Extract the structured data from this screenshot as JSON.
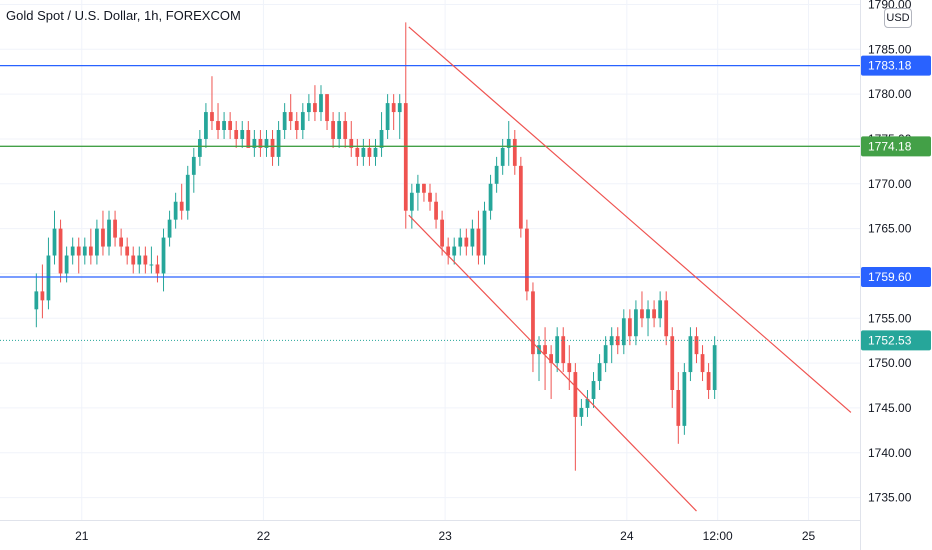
{
  "header": {
    "title": "Gold Spot / U.S. Dollar, 1h, FOREXCOM"
  },
  "currency_button": {
    "label": "USD"
  },
  "colors": {
    "up": "#26a69a",
    "down": "#ef5350",
    "grid": "#f0f3fa",
    "axis_text": "#131722",
    "blue_line": "#2962ff",
    "green_line": "#43a047",
    "channel": "#ef5350",
    "price_line": "#26a69a"
  },
  "chart_data": {
    "type": "candlestick",
    "title": "Gold Spot / U.S. Dollar, 1h, FOREXCOM",
    "ylim": [
      1732.5,
      1790.5
    ],
    "yticks": [
      1735,
      1740,
      1745,
      1750,
      1755,
      1760,
      1765,
      1770,
      1775,
      1780,
      1785,
      1790
    ],
    "ytick_labels": [
      "1735.00",
      "1740.00",
      "1745.00",
      "1750.00",
      "1755.00",
      "1760.00",
      "1765.00",
      "1770.00",
      "1775.00",
      "1780.00",
      "1785.00",
      "1790.00"
    ],
    "xticks": [
      {
        "label": "21",
        "x": 7.5
      },
      {
        "label": "22",
        "x": 37.5
      },
      {
        "label": "23",
        "x": 67.5
      },
      {
        "label": "24",
        "x": 97.5
      },
      {
        "label": "12:00",
        "x": 112.5
      },
      {
        "label": "25",
        "x": 127.5
      }
    ],
    "xlim": [
      -6,
      136
    ],
    "grid": true,
    "horizontal_levels": [
      {
        "value": 1783.18,
        "label": "1783.18",
        "color": "#2962ff"
      },
      {
        "value": 1774.18,
        "label": "1774.18",
        "color": "#43a047"
      },
      {
        "value": 1759.6,
        "label": "1759.60",
        "color": "#2962ff"
      }
    ],
    "last_price": {
      "value": 1752.53,
      "label": "1752.53"
    },
    "channel_lines": [
      {
        "x1": 61.5,
        "y1": 1787.5,
        "x2": 134.5,
        "y2": 1744.5
      },
      {
        "x1": 61.5,
        "y1": 1766.5,
        "x2": 109,
        "y2": 1733.5
      }
    ],
    "candles": [
      [
        1756,
        1760,
        1754,
        1758
      ],
      [
        1758,
        1761,
        1755,
        1757
      ],
      [
        1757,
        1764,
        1756,
        1762
      ],
      [
        1762,
        1767,
        1761,
        1765
      ],
      [
        1765,
        1766,
        1759,
        1760
      ],
      [
        1760,
        1763,
        1759,
        1762
      ],
      [
        1762,
        1764,
        1761,
        1763
      ],
      [
        1763,
        1764,
        1760,
        1762
      ],
      [
        1762,
        1764,
        1761,
        1763
      ],
      [
        1763,
        1765,
        1761,
        1762
      ],
      [
        1762,
        1766,
        1761,
        1765
      ],
      [
        1765,
        1767,
        1762,
        1763
      ],
      [
        1763,
        1767,
        1762,
        1766
      ],
      [
        1766,
        1767,
        1763,
        1764
      ],
      [
        1764,
        1765,
        1762,
        1763
      ],
      [
        1763,
        1764,
        1761,
        1762
      ],
      [
        1762,
        1763,
        1760,
        1761
      ],
      [
        1761,
        1763,
        1760,
        1762
      ],
      [
        1762,
        1763,
        1760,
        1761
      ],
      [
        1761,
        1763,
        1760,
        1761
      ],
      [
        1761,
        1762,
        1759,
        1760
      ],
      [
        1760,
        1765,
        1758,
        1764
      ],
      [
        1764,
        1767,
        1763,
        1766
      ],
      [
        1766,
        1769,
        1765,
        1768
      ],
      [
        1768,
        1770,
        1766,
        1767
      ],
      [
        1767,
        1772,
        1766,
        1771
      ],
      [
        1771,
        1774,
        1769,
        1773
      ],
      [
        1773,
        1776,
        1772,
        1775
      ],
      [
        1775,
        1779,
        1774,
        1778
      ],
      [
        1778,
        1782,
        1776,
        1777
      ],
      [
        1777,
        1779,
        1775,
        1776
      ],
      [
        1776,
        1778,
        1775,
        1777
      ],
      [
        1777,
        1778,
        1775,
        1776
      ],
      [
        1776,
        1777,
        1774,
        1775
      ],
      [
        1775,
        1777,
        1774,
        1776
      ],
      [
        1776,
        1777,
        1774,
        1774
      ],
      [
        1774,
        1776,
        1773,
        1775
      ],
      [
        1775,
        1776,
        1773,
        1774
      ],
      [
        1774,
        1776,
        1773,
        1775
      ],
      [
        1775,
        1776,
        1772,
        1773
      ],
      [
        1773,
        1777,
        1772,
        1776
      ],
      [
        1776,
        1779,
        1775,
        1778
      ],
      [
        1778,
        1780,
        1776,
        1777
      ],
      [
        1777,
        1778,
        1775,
        1776
      ],
      [
        1776,
        1779,
        1775,
        1778
      ],
      [
        1778,
        1780,
        1777,
        1779
      ],
      [
        1779,
        1781,
        1777,
        1778
      ],
      [
        1778,
        1781,
        1777,
        1780
      ],
      [
        1780,
        1780,
        1776,
        1777
      ],
      [
        1777,
        1778,
        1774,
        1775
      ],
      [
        1775,
        1778,
        1774,
        1777
      ],
      [
        1777,
        1778,
        1774,
        1775
      ],
      [
        1775,
        1777,
        1773,
        1774
      ],
      [
        1774,
        1775,
        1772,
        1773
      ],
      [
        1773,
        1775,
        1772,
        1774
      ],
      [
        1774,
        1775,
        1772,
        1773
      ],
      [
        1773,
        1775,
        1772,
        1774
      ],
      [
        1774,
        1778,
        1773,
        1776
      ],
      [
        1776,
        1780,
        1775,
        1779
      ],
      [
        1779,
        1780,
        1776,
        1778
      ],
      [
        1778,
        1780,
        1775,
        1779
      ],
      [
        1779,
        1788,
        1765,
        1767
      ],
      [
        1767,
        1770,
        1765,
        1769
      ],
      [
        1769,
        1771,
        1767,
        1770
      ],
      [
        1770,
        1770,
        1768,
        1769
      ],
      [
        1769,
        1770,
        1767,
        1768
      ],
      [
        1768,
        1769,
        1765,
        1766
      ],
      [
        1766,
        1767,
        1762,
        1763
      ],
      [
        1763,
        1764,
        1761,
        1762
      ],
      [
        1762,
        1764,
        1761,
        1763
      ],
      [
        1763,
        1765,
        1762,
        1764
      ],
      [
        1764,
        1765,
        1762,
        1763
      ],
      [
        1763,
        1766,
        1762,
        1765
      ],
      [
        1765,
        1767,
        1761,
        1762
      ],
      [
        1762,
        1768,
        1761,
        1767
      ],
      [
        1767,
        1771,
        1766,
        1770
      ],
      [
        1770,
        1773,
        1769,
        1772
      ],
      [
        1772,
        1775,
        1771,
        1774
      ],
      [
        1774,
        1777,
        1772,
        1775
      ],
      [
        1775,
        1776,
        1771,
        1772
      ],
      [
        1772,
        1773,
        1764,
        1765
      ],
      [
        1765,
        1766,
        1757,
        1758
      ],
      [
        1758,
        1759,
        1749,
        1751
      ],
      [
        1751,
        1753,
        1748,
        1752
      ],
      [
        1752,
        1754,
        1747,
        1751
      ],
      [
        1751,
        1752,
        1746,
        1750
      ],
      [
        1750,
        1754,
        1749,
        1753
      ],
      [
        1753,
        1754,
        1749,
        1750
      ],
      [
        1750,
        1752,
        1747,
        1749
      ],
      [
        1749,
        1750,
        1738,
        1744
      ],
      [
        1744,
        1746,
        1743,
        1745
      ],
      [
        1745,
        1747,
        1744,
        1746
      ],
      [
        1746,
        1749,
        1745,
        1748
      ],
      [
        1748,
        1751,
        1747,
        1750
      ],
      [
        1750,
        1753,
        1749,
        1752
      ],
      [
        1752,
        1754,
        1750,
        1753
      ],
      [
        1753,
        1754,
        1751,
        1752
      ],
      [
        1752,
        1756,
        1751,
        1755
      ],
      [
        1755,
        1756,
        1752,
        1753
      ],
      [
        1753,
        1757,
        1752,
        1756
      ],
      [
        1756,
        1758,
        1754,
        1755
      ],
      [
        1755,
        1757,
        1753,
        1756
      ],
      [
        1756,
        1757,
        1754,
        1755
      ],
      [
        1755,
        1758,
        1754,
        1757
      ],
      [
        1757,
        1758,
        1752,
        1753
      ],
      [
        1753,
        1754,
        1745,
        1747
      ],
      [
        1747,
        1749,
        1741,
        1743
      ],
      [
        1743,
        1750,
        1742,
        1749
      ],
      [
        1749,
        1754,
        1748,
        1753
      ],
      [
        1753,
        1754,
        1750,
        1751
      ],
      [
        1751,
        1752,
        1748,
        1749
      ],
      [
        1749,
        1750,
        1746,
        1747
      ],
      [
        1747,
        1753,
        1746,
        1752
      ]
    ]
  }
}
